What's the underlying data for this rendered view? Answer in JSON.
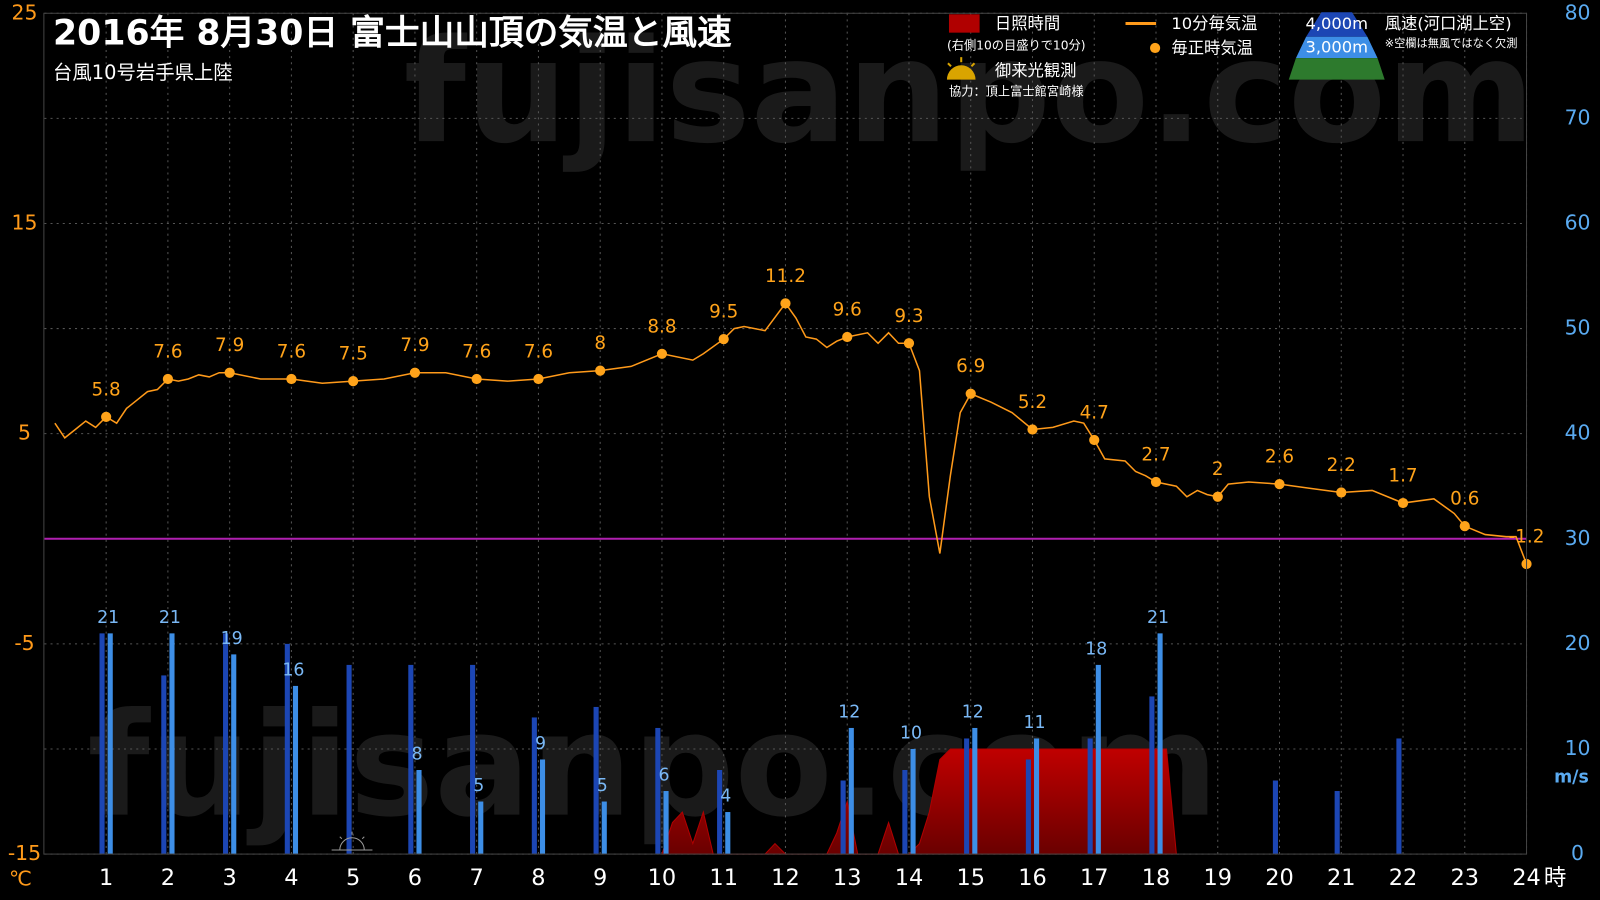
{
  "chart_data": {
    "type": "combo",
    "title": "2016年  8月30日   富士山山頂の気温と風速",
    "subtitle": "台風10号岩手県上陸",
    "annotations": {
      "sunshine_note": "(右側10の目盛りで10分)",
      "sunrise": "御来光観測",
      "credit": "協力：頂上富士館宮崎様",
      "wind_label": "風速(河口湖上空)",
      "missing_note": "※空欄は無風ではなく欠測",
      "watermark": "fujisanpo.com"
    },
    "x_unit": "時",
    "y_unit": "℃",
    "y2_unit": "m/s",
    "xlim": [
      0,
      24
    ],
    "xticks": [
      1,
      2,
      3,
      4,
      5,
      6,
      7,
      8,
      9,
      10,
      11,
      12,
      13,
      14,
      15,
      16,
      17,
      18,
      19,
      20,
      21,
      22,
      23,
      24
    ],
    "ylim": [
      -15,
      25
    ],
    "yticks": [
      25,
      15,
      5,
      -5,
      -15
    ],
    "y2lim": [
      0,
      80
    ],
    "y2ticks": [
      0,
      10,
      20,
      30,
      40,
      50,
      60,
      70,
      80
    ],
    "grid": true,
    "series": [
      {
        "name": "日照時間",
        "type": "area",
        "axis": "y2",
        "color": "#b00000",
        "x": [
          10,
          10.17,
          10.33,
          10.5,
          10.67,
          10.83,
          11.67,
          11.83,
          12,
          12.17,
          12.67,
          12.83,
          13,
          13.17,
          13.5,
          13.67,
          13.83,
          14,
          14.17,
          14.33,
          14.5,
          14.67,
          15,
          16,
          17,
          18,
          18.17,
          18.33
        ],
        "values": [
          0,
          3,
          4,
          1,
          4,
          0,
          0,
          1,
          0,
          0,
          0,
          2,
          5,
          0,
          0,
          3,
          0,
          0,
          1,
          4,
          9,
          10,
          10,
          10,
          10,
          10,
          10,
          0
        ]
      },
      {
        "name": "10分毎気温",
        "type": "line",
        "color": "#ff9a1a",
        "x": [
          0.17,
          0.33,
          0.5,
          0.67,
          0.83,
          1,
          1.17,
          1.33,
          1.5,
          1.67,
          1.83,
          2,
          2.17,
          2.33,
          2.5,
          2.67,
          2.83,
          3,
          3.5,
          4,
          4.5,
          5,
          5.5,
          6,
          6.5,
          7,
          7.5,
          8,
          8.5,
          9,
          9.5,
          10,
          10.5,
          10.67,
          11,
          11.17,
          11.33,
          11.67,
          12,
          12.17,
          12.33,
          12.5,
          12.67,
          12.83,
          13,
          13.33,
          13.5,
          13.67,
          13.83,
          14,
          14.17,
          14.33,
          14.5,
          14.67,
          14.83,
          15,
          15.33,
          15.67,
          16,
          16.33,
          16.67,
          16.83,
          17,
          17.17,
          17.5,
          17.67,
          17.83,
          18,
          18.33,
          18.5,
          18.67,
          18.83,
          19,
          19.17,
          19.5,
          20,
          20.5,
          21,
          21.5,
          22,
          22.5,
          22.83,
          23,
          23.33,
          23.67,
          23.83,
          24
        ],
        "values": [
          5.5,
          4.8,
          5.2,
          5.6,
          5.3,
          5.8,
          5.5,
          6.2,
          6.6,
          7.0,
          7.1,
          7.6,
          7.5,
          7.6,
          7.8,
          7.7,
          7.9,
          7.9,
          7.6,
          7.6,
          7.4,
          7.5,
          7.6,
          7.9,
          7.9,
          7.6,
          7.5,
          7.6,
          7.9,
          8,
          8.2,
          8.8,
          8.5,
          8.8,
          9.5,
          10.0,
          10.1,
          9.9,
          11.2,
          10.5,
          9.6,
          9.5,
          9.1,
          9.4,
          9.6,
          9.8,
          9.3,
          9.8,
          9.3,
          9.3,
          8.0,
          2.0,
          -0.7,
          3.0,
          6.0,
          6.9,
          6.5,
          6.0,
          5.2,
          5.3,
          5.6,
          5.5,
          4.7,
          3.8,
          3.7,
          3.2,
          3.0,
          2.7,
          2.5,
          2.0,
          2.3,
          2.1,
          2.0,
          2.6,
          2.7,
          2.6,
          2.4,
          2.2,
          2.3,
          1.7,
          1.9,
          1.2,
          0.6,
          0.2,
          0.1,
          0.1,
          -1.2
        ]
      },
      {
        "name": "毎正時気温",
        "type": "scatter",
        "color": "#ffa31a",
        "show_labels": true,
        "x": [
          1,
          2,
          3,
          4,
          5,
          6,
          7,
          8,
          9,
          10,
          11,
          12,
          13,
          14,
          15,
          16,
          17,
          18,
          19,
          20,
          21,
          22,
          23,
          24
        ],
        "values": [
          5.8,
          7.6,
          7.9,
          7.6,
          7.5,
          7.9,
          7.6,
          7.6,
          8,
          8.8,
          9.5,
          11.2,
          9.6,
          9.3,
          6.9,
          5.2,
          4.7,
          2.7,
          2,
          2.6,
          2.2,
          1.7,
          0.6,
          -1.2
        ]
      },
      {
        "name": "4,000m",
        "type": "bar",
        "axis": "y2",
        "color": "#1c46b4",
        "offset": -1,
        "x": [
          1,
          2,
          3,
          4,
          5,
          6,
          7,
          8,
          9,
          10,
          11,
          12,
          13,
          14,
          15,
          16,
          17,
          18,
          19,
          20,
          21,
          22,
          23,
          24
        ],
        "values": [
          21,
          17,
          21,
          20,
          18,
          18,
          18,
          13,
          14,
          12,
          8,
          null,
          7,
          8,
          11,
          9,
          11,
          15,
          null,
          7,
          6,
          11,
          null,
          null
        ]
      },
      {
        "name": "3,000m",
        "type": "bar",
        "axis": "y2",
        "color": "#3d8ee6",
        "offset": 1,
        "show_labels": true,
        "x": [
          1,
          2,
          3,
          4,
          5,
          6,
          7,
          8,
          9,
          10,
          11,
          12,
          13,
          14,
          15,
          16,
          17,
          18,
          19,
          20,
          21,
          22,
          23,
          24
        ],
        "values": [
          21,
          21,
          19,
          16,
          null,
          8,
          5,
          9,
          5,
          6,
          4,
          null,
          12,
          10,
          12,
          11,
          18,
          21,
          null,
          null,
          null,
          null,
          null,
          null
        ]
      }
    ]
  }
}
